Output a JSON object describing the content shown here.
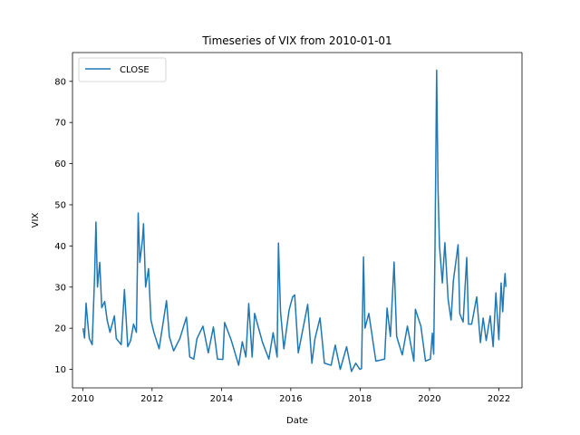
{
  "chart_data": {
    "type": "line",
    "title": "Timeseries of VIX from 2010-01-01",
    "xlabel": "Date",
    "ylabel": "VIX",
    "xlim": [
      "2009-09-15",
      "2022-09-01"
    ],
    "ylim": [
      5.5,
      87
    ],
    "x_ticks": [
      "2010",
      "2012",
      "2014",
      "2016",
      "2018",
      "2020",
      "2022"
    ],
    "y_ticks": [
      10,
      20,
      30,
      40,
      50,
      60,
      70,
      80
    ],
    "grid": false,
    "legend": {
      "position": "top-left",
      "entries": [
        "CLOSE"
      ]
    },
    "series": [
      {
        "name": "CLOSE",
        "color": "#1f77b4",
        "points": [
          [
            "2010-01-04",
            20.0
          ],
          [
            "2010-01-20",
            17.6
          ],
          [
            "2010-02-05",
            26.1
          ],
          [
            "2010-02-20",
            22.0
          ],
          [
            "2010-03-10",
            17.6
          ],
          [
            "2010-04-10",
            16.0
          ],
          [
            "2010-05-06",
            32.8
          ],
          [
            "2010-05-20",
            45.8
          ],
          [
            "2010-06-05",
            30.0
          ],
          [
            "2010-06-29",
            36.0
          ],
          [
            "2010-07-20",
            25.0
          ],
          [
            "2010-08-20",
            26.5
          ],
          [
            "2010-09-15",
            22.0
          ],
          [
            "2010-10-15",
            19.0
          ],
          [
            "2010-11-30",
            23.0
          ],
          [
            "2010-12-20",
            17.5
          ],
          [
            "2011-02-10",
            16.0
          ],
          [
            "2011-03-16",
            29.4
          ],
          [
            "2011-04-20",
            15.5
          ],
          [
            "2011-05-20",
            17.0
          ],
          [
            "2011-06-20",
            21.0
          ],
          [
            "2011-07-20",
            19.0
          ],
          [
            "2011-08-08",
            48.0
          ],
          [
            "2011-08-25",
            36.0
          ],
          [
            "2011-09-22",
            41.5
          ],
          [
            "2011-10-03",
            45.4
          ],
          [
            "2011-10-25",
            30.0
          ],
          [
            "2011-11-25",
            34.5
          ],
          [
            "2011-12-20",
            22.0
          ],
          [
            "2012-01-20",
            19.0
          ],
          [
            "2012-03-15",
            15.0
          ],
          [
            "2012-06-01",
            26.7
          ],
          [
            "2012-07-01",
            18.0
          ],
          [
            "2012-08-15",
            14.5
          ],
          [
            "2012-10-20",
            17.5
          ],
          [
            "2012-12-28",
            22.7
          ],
          [
            "2013-02-01",
            13.0
          ],
          [
            "2013-03-15",
            12.5
          ],
          [
            "2013-04-18",
            17.5
          ],
          [
            "2013-06-20",
            20.5
          ],
          [
            "2013-08-15",
            14.0
          ],
          [
            "2013-10-08",
            20.3
          ],
          [
            "2013-11-20",
            12.5
          ],
          [
            "2014-01-15",
            12.4
          ],
          [
            "2014-02-03",
            21.4
          ],
          [
            "2014-04-15",
            17.0
          ],
          [
            "2014-07-01",
            11.0
          ],
          [
            "2014-08-08",
            16.7
          ],
          [
            "2014-09-15",
            13.0
          ],
          [
            "2014-10-15",
            26.0
          ],
          [
            "2014-11-20",
            13.0
          ],
          [
            "2014-12-16",
            23.6
          ],
          [
            "2015-01-15",
            21.0
          ],
          [
            "2015-03-10",
            16.5
          ],
          [
            "2015-05-15",
            12.5
          ],
          [
            "2015-06-29",
            18.9
          ],
          [
            "2015-08-10",
            13.0
          ],
          [
            "2015-08-24",
            40.7
          ],
          [
            "2015-09-15",
            24.0
          ],
          [
            "2015-10-20",
            15.0
          ],
          [
            "2015-12-14",
            24.4
          ],
          [
            "2016-01-20",
            27.6
          ],
          [
            "2016-02-11",
            28.1
          ],
          [
            "2016-03-20",
            14.0
          ],
          [
            "2016-06-27",
            25.8
          ],
          [
            "2016-08-10",
            11.5
          ],
          [
            "2016-09-12",
            17.5
          ],
          [
            "2016-11-04",
            22.5
          ],
          [
            "2016-12-20",
            11.5
          ],
          [
            "2017-03-01",
            11.0
          ],
          [
            "2017-04-13",
            15.9
          ],
          [
            "2017-06-05",
            10.0
          ],
          [
            "2017-08-11",
            15.5
          ],
          [
            "2017-10-01",
            9.5
          ],
          [
            "2017-11-15",
            11.5
          ],
          [
            "2017-12-28",
            10.0
          ],
          [
            "2018-01-15",
            10.2
          ],
          [
            "2018-02-05",
            37.3
          ],
          [
            "2018-02-20",
            20.0
          ],
          [
            "2018-04-02",
            23.6
          ],
          [
            "2018-06-15",
            12.0
          ],
          [
            "2018-09-15",
            12.5
          ],
          [
            "2018-10-11",
            24.9
          ],
          [
            "2018-11-15",
            18.0
          ],
          [
            "2018-12-24",
            36.1
          ],
          [
            "2019-01-20",
            18.0
          ],
          [
            "2019-03-20",
            13.5
          ],
          [
            "2019-05-13",
            20.5
          ],
          [
            "2019-07-20",
            12.0
          ],
          [
            "2019-08-05",
            24.6
          ],
          [
            "2019-10-02",
            20.5
          ],
          [
            "2019-11-20",
            12.0
          ],
          [
            "2020-01-10",
            12.5
          ],
          [
            "2020-01-31",
            18.8
          ],
          [
            "2020-02-14",
            13.7
          ],
          [
            "2020-02-28",
            40.1
          ],
          [
            "2020-03-16",
            82.7
          ],
          [
            "2020-03-31",
            53.5
          ],
          [
            "2020-04-15",
            40.0
          ],
          [
            "2020-05-15",
            31.0
          ],
          [
            "2020-06-11",
            40.8
          ],
          [
            "2020-07-15",
            27.0
          ],
          [
            "2020-08-15",
            22.0
          ],
          [
            "2020-09-08",
            31.5
          ],
          [
            "2020-10-28",
            40.3
          ],
          [
            "2020-11-15",
            23.5
          ],
          [
            "2020-12-20",
            21.5
          ],
          [
            "2021-01-27",
            37.2
          ],
          [
            "2021-02-15",
            21.0
          ],
          [
            "2021-03-20",
            21.0
          ],
          [
            "2021-05-12",
            27.6
          ],
          [
            "2021-06-20",
            16.5
          ],
          [
            "2021-07-19",
            22.5
          ],
          [
            "2021-08-20",
            17.0
          ],
          [
            "2021-10-01",
            23.0
          ],
          [
            "2021-11-01",
            15.5
          ],
          [
            "2021-11-30",
            28.6
          ],
          [
            "2021-12-31",
            17.2
          ],
          [
            "2022-01-24",
            31.0
          ],
          [
            "2022-02-10",
            24.0
          ],
          [
            "2022-02-24",
            30.3
          ],
          [
            "2022-03-07",
            33.3
          ],
          [
            "2022-03-15",
            30.0
          ]
        ]
      }
    ]
  }
}
